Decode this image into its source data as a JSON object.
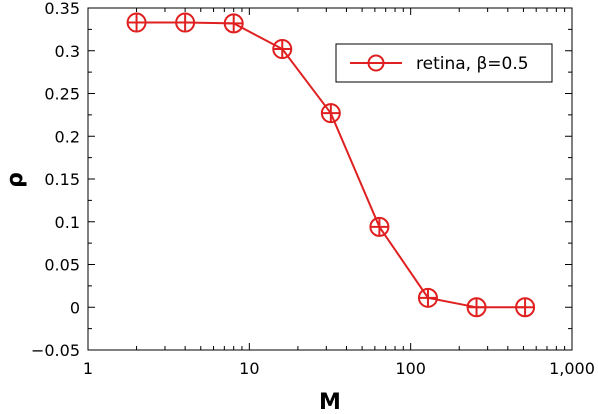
{
  "chart_data": {
    "type": "line",
    "xlabel": "M",
    "ylabel": "ρ",
    "x_scale": "log",
    "xlim": [
      1,
      1000
    ],
    "ylim": [
      -0.05,
      0.35
    ],
    "x_ticks": [
      1,
      10,
      100,
      1000
    ],
    "x_tick_labels": [
      "1",
      "10",
      "100",
      "1,000"
    ],
    "y_ticks": [
      -0.05,
      0,
      0.05,
      0.1,
      0.15,
      0.2,
      0.25,
      0.3,
      0.35
    ],
    "y_tick_labels": [
      "−0.05",
      "0",
      "0.05",
      "0.1",
      "0.15",
      "0.2",
      "0.25",
      "0.3",
      "0.35"
    ],
    "grid": false,
    "legend_position": "top-right",
    "series": [
      {
        "name": "retina, β=0.5",
        "color": "#e02020",
        "marker": "circle-plus",
        "x": [
          2,
          4,
          8,
          16,
          32,
          64,
          128,
          256,
          512
        ],
        "values": [
          0.333,
          0.333,
          0.332,
          0.302,
          0.227,
          0.094,
          0.011,
          0.0,
          0.0
        ]
      }
    ]
  }
}
